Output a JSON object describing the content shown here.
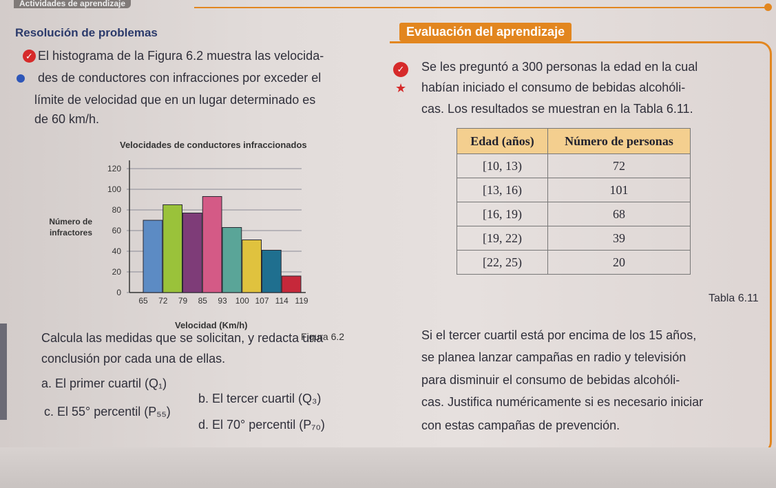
{
  "header": {
    "tag": "Actividades de aprendizaje"
  },
  "left": {
    "title": "Resolución de problemas",
    "intro_lines": [
      "El histograma de la Figura 6.2 muestra las velocida-",
      "des de conductores con infracciones por exceder el",
      "límite de velocidad que en un lugar determinado es",
      "de 60 km/h."
    ],
    "task_lines": [
      "Calcula las medidas que se solicitan, y redacta una",
      "conclusión por cada una de ellas."
    ],
    "items": {
      "a": "a. El primer cuartil (Q₁)",
      "b": "b. El tercer cuartil (Q₃)",
      "c": "c. El 55° percentil (P₅₅)",
      "d": "d. El 70° percentil (P₇₀)"
    }
  },
  "chart_data": {
    "type": "bar",
    "title": "Velocidades de conductores infraccionados",
    "xlabel": "Velocidad (Km/h)",
    "ylabel": "Número de infractores",
    "x_ticks": [
      "65",
      "72",
      "79",
      "85",
      "93",
      "100",
      "107",
      "114",
      "119"
    ],
    "categories": [
      "65-72",
      "72-79",
      "79-85",
      "85-93",
      "93-100",
      "100-107",
      "107-114",
      "114-119"
    ],
    "values": [
      70,
      85,
      77,
      93,
      63,
      51,
      41,
      16
    ],
    "colors": [
      "#5c8bc4",
      "#9ac23a",
      "#7e3c78",
      "#d45a86",
      "#5aa598",
      "#e0c23e",
      "#1f6f8f",
      "#c6283a"
    ],
    "yticks": [
      "0",
      "20",
      "40",
      "60",
      "80",
      "100",
      "120"
    ],
    "ylim": [
      0,
      120
    ],
    "grid": true
  },
  "figure_caption": "Figura 6.2",
  "right": {
    "banner": "Evaluación del aprendizaje",
    "intro_lines": [
      "Se les preguntó a 300 personas la edad en la cual",
      "habían iniciado el consumo de bebidas alcohóli-",
      "cas. Los resultados se muestran en la Tabla 6.11."
    ],
    "table": {
      "headers": [
        "Edad (años)",
        "Número de personas"
      ],
      "rows": [
        [
          "[10, 13)",
          "72"
        ],
        [
          "[13, 16)",
          "101"
        ],
        [
          "[16, 19)",
          "68"
        ],
        [
          "[19, 22)",
          "39"
        ],
        [
          "[22, 25)",
          "20"
        ]
      ],
      "caption": "Tabla 6.11"
    },
    "question_lines": [
      "Si el tercer cuartil está por encima de los 15 años,",
      "se planea lanzar campañas en radio y televisión",
      "para disminuir el consumo de bebidas alcohóli-",
      "cas. Justifica numéricamente si es necesario iniciar",
      "con estas campañas de prevención."
    ]
  }
}
